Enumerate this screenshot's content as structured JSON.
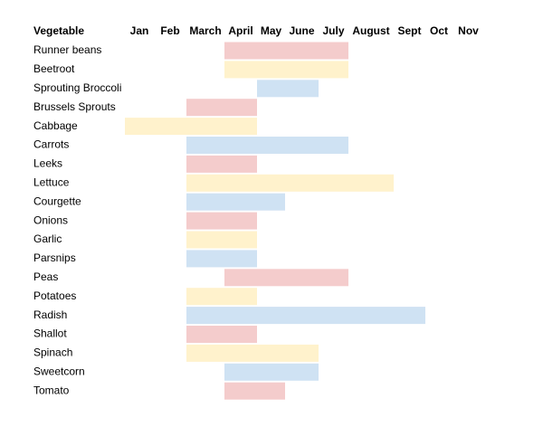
{
  "table": {
    "header": {
      "first": "Vegetable",
      "months": [
        "Jan",
        "Feb",
        "March",
        "April",
        "May",
        "June",
        "July",
        "August",
        "Sept",
        "Oct",
        "Nov"
      ]
    },
    "rows": [
      {
        "name": "Runner beans",
        "from": "April",
        "to": "July",
        "color": "#f4cccc"
      },
      {
        "name": "Beetroot",
        "from": "April",
        "to": "July",
        "color": "#fff2cc"
      },
      {
        "name": "Sprouting Broccoli",
        "from": "May",
        "to": "June",
        "color": "#cfe2f3"
      },
      {
        "name": "Brussels Sprouts",
        "from": "March",
        "to": "April",
        "color": "#f4cccc"
      },
      {
        "name": "Cabbage",
        "from": "Jan",
        "to": "April",
        "color": "#fff2cc"
      },
      {
        "name": "Carrots",
        "from": "March",
        "to": "July",
        "color": "#cfe2f3"
      },
      {
        "name": "Leeks",
        "from": "March",
        "to": "April",
        "color": "#f4cccc"
      },
      {
        "name": "Lettuce",
        "from": "March",
        "to": "August",
        "color": "#fff2cc"
      },
      {
        "name": "Courgette",
        "from": "March",
        "to": "May",
        "color": "#cfe2f3"
      },
      {
        "name": "Onions",
        "from": "March",
        "to": "April",
        "color": "#f4cccc"
      },
      {
        "name": "Garlic",
        "from": "March",
        "to": "April",
        "color": "#fff2cc"
      },
      {
        "name": "Parsnips",
        "from": "March",
        "to": "April",
        "color": "#cfe2f3"
      },
      {
        "name": "Peas",
        "from": "April",
        "to": "July",
        "color": "#f4cccc"
      },
      {
        "name": "Potatoes",
        "from": "March",
        "to": "April",
        "color": "#fff2cc"
      },
      {
        "name": "Radish",
        "from": "March",
        "to": "Sept",
        "color": "#cfe2f3"
      },
      {
        "name": "Shallot",
        "from": "March",
        "to": "April",
        "color": "#f4cccc"
      },
      {
        "name": "Spinach",
        "from": "March",
        "to": "June",
        "color": "#fff2cc"
      },
      {
        "name": "Sweetcorn",
        "from": "April",
        "to": "June",
        "color": "#cfe2f3"
      },
      {
        "name": "Tomato",
        "from": "April",
        "to": "May",
        "color": "#f4cccc"
      }
    ]
  }
}
